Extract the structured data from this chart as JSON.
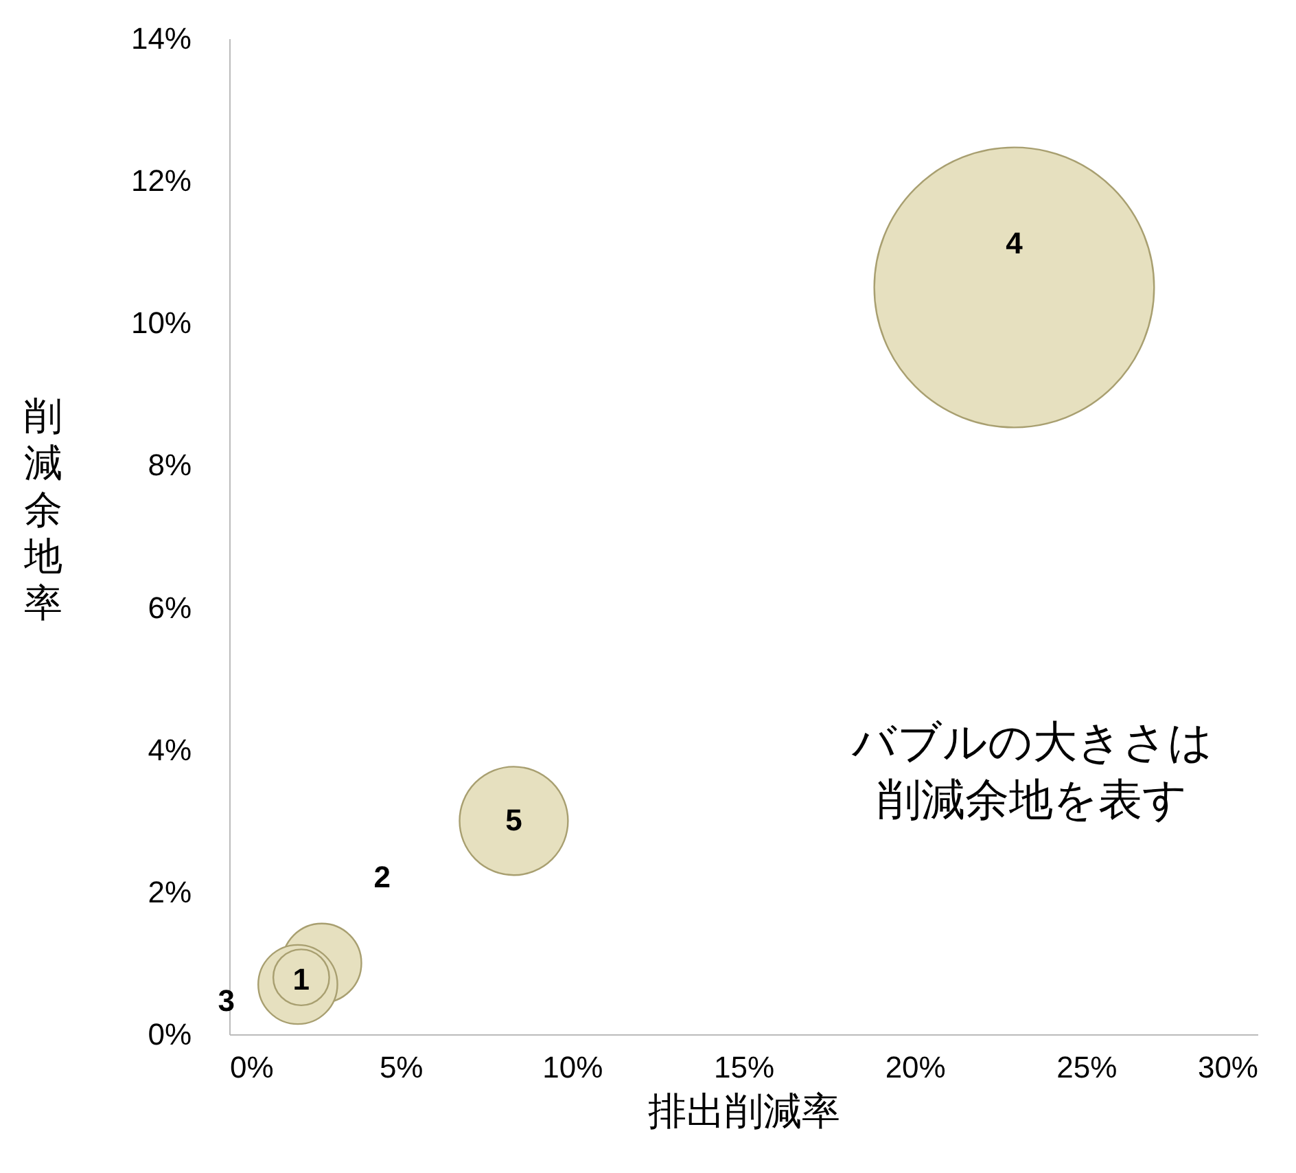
{
  "chart_data": {
    "type": "bubble",
    "xlabel": "排出削減率",
    "ylabel": "削減余地率",
    "x": [
      2.1,
      2.7,
      2.0,
      22.9,
      8.3
    ],
    "series": [
      {
        "color": "#e6e0bf",
        "values": [
          0.8,
          1.0,
          0.7,
          10.5,
          3.0
        ],
        "sizes": [
          0.04,
          0.08,
          0.08,
          1,
          0.15
        ]
      }
    ],
    "xlim": [
      0,
      30
    ],
    "ylim": [
      0,
      14
    ],
    "xticks": [
      {
        "value": 0,
        "label": "0%"
      },
      {
        "value": 5,
        "label": "5%"
      },
      {
        "value": 10,
        "label": "10%"
      },
      {
        "value": 15,
        "label": "15%"
      },
      {
        "value": 20,
        "label": "20%"
      },
      {
        "value": 25,
        "label": "25%"
      },
      {
        "value": 30,
        "label": "30%"
      }
    ],
    "yticks": [
      {
        "value": 0,
        "label": "0%"
      },
      {
        "value": 2,
        "label": "2%"
      },
      {
        "value": 4,
        "label": "4%"
      },
      {
        "value": 6,
        "label": "6%"
      },
      {
        "value": 8,
        "label": "8%"
      },
      {
        "value": 10,
        "label": "10%"
      },
      {
        "value": 12,
        "label": "12%"
      },
      {
        "value": 14,
        "label": "14%"
      }
    ],
    "annotations": [
      {
        "text": "1",
        "x": 2.1,
        "y": 0.8
      },
      {
        "text": "2",
        "x": 2.7,
        "y": 1.0
      },
      {
        "text": "3",
        "x": 2.0,
        "y": 0.7
      },
      {
        "text": "4",
        "x": 22.9,
        "y": 10.5
      },
      {
        "text": "5",
        "x": 8.3,
        "y": 3.0
      },
      "バブルの大きさは",
      "削減余地を表す"
    ]
  }
}
